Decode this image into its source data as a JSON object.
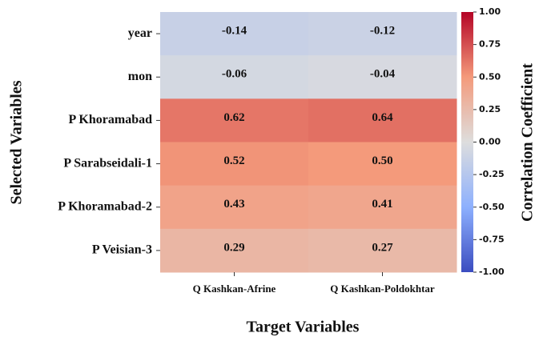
{
  "chart_data": {
    "type": "heatmap",
    "x_label": "Target Variables",
    "y_label": "Selected Variables",
    "colorbar_label": "Correlation Coefficient",
    "colormap": "coolwarm",
    "x_categories": [
      "Q Kashkan-Afrine",
      "Q Kashkan-Poldokhtar"
    ],
    "y_categories": [
      "year",
      "mon",
      "P Khoramabad",
      "P Sarabseidali-1",
      "P Khoramabad-2",
      "P Veisian-3"
    ],
    "values": [
      [
        -0.14,
        -0.12
      ],
      [
        -0.06,
        -0.04
      ],
      [
        0.62,
        0.64
      ],
      [
        0.52,
        0.5
      ],
      [
        0.43,
        0.41
      ],
      [
        0.29,
        0.27
      ]
    ],
    "value_labels": [
      [
        "-0.14",
        "-0.12"
      ],
      [
        "-0.06",
        "-0.04"
      ],
      [
        "0.62",
        "0.64"
      ],
      [
        "0.52",
        "0.50"
      ],
      [
        "0.43",
        "0.41"
      ],
      [
        "0.29",
        "0.27"
      ]
    ],
    "clim": [
      -1,
      1
    ],
    "cticks": [
      {
        "value": 1,
        "label": "1.00"
      },
      {
        "value": 0.75,
        "label": "0.75"
      },
      {
        "value": 0.5,
        "label": "0.50"
      },
      {
        "value": 0.25,
        "label": "0.25"
      },
      {
        "value": 0,
        "label": "0.00"
      },
      {
        "value": -0.25,
        "label": "-0.25"
      },
      {
        "value": -0.5,
        "label": "-0.50"
      },
      {
        "value": -0.75,
        "label": "-0.75"
      },
      {
        "value": -1,
        "label": "-1.00"
      }
    ]
  }
}
